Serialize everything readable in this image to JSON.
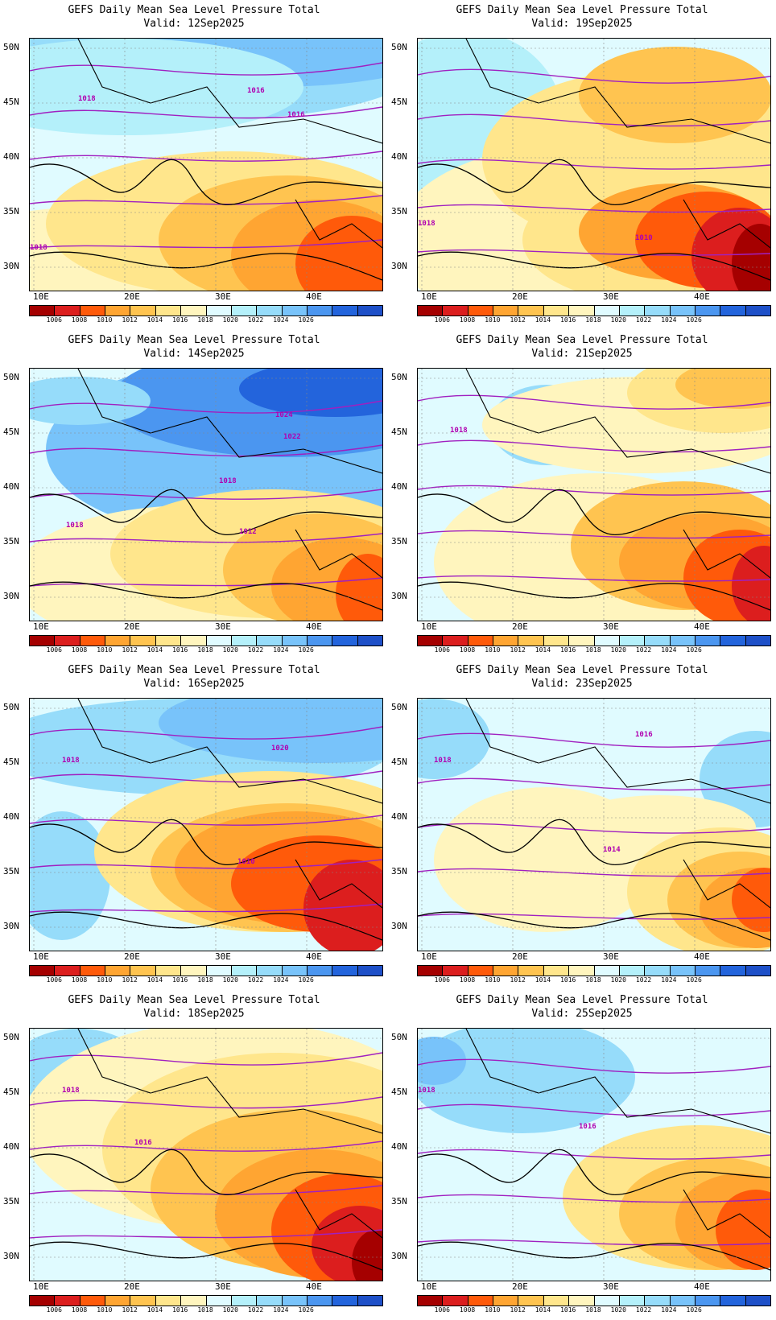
{
  "title_line1": "GEFS Daily Mean Sea Level Pressure Total",
  "lat_labels": [
    "50N",
    "45N",
    "40N",
    "35N",
    "30N"
  ],
  "lon_labels": [
    "10E",
    "20E",
    "30E",
    "40E"
  ],
  "colorbar": {
    "colors": [
      "#a50000",
      "#dc1e1e",
      "#ff5a0a",
      "#ffa532",
      "#ffc450",
      "#ffe68c",
      "#fff5be",
      "#e0fbff",
      "#b4f0fa",
      "#96dcfa",
      "#78c3fa",
      "#4b96f0",
      "#2364dc",
      "#1e50c8"
    ],
    "labels": [
      "1006",
      "1008",
      "1010",
      "1012",
      "1014",
      "1016",
      "1018",
      "1020",
      "1022",
      "1024",
      "1026"
    ]
  },
  "panels": [
    {
      "valid": "Valid: 12Sep2025",
      "isobar_labels": [
        "1018",
        "1016",
        "1016",
        "1018"
      ]
    },
    {
      "valid": "Valid: 19Sep2025",
      "isobar_labels": [
        "1018",
        "1010"
      ]
    },
    {
      "valid": "Valid: 14Sep2025",
      "isobar_labels": [
        "1024",
        "1022",
        "1018",
        "1018",
        "1012"
      ]
    },
    {
      "valid": "Valid: 21Sep2025",
      "isobar_labels": [
        "1018"
      ]
    },
    {
      "valid": "Valid: 16Sep2025",
      "isobar_labels": [
        "1020",
        "1018",
        "1010"
      ]
    },
    {
      "valid": "Valid: 23Sep2025",
      "isobar_labels": [
        "1016",
        "1018",
        "1014"
      ]
    },
    {
      "valid": "Valid: 18Sep2025",
      "isobar_labels": [
        "1018",
        "1016"
      ]
    },
    {
      "valid": "Valid: 25Sep2025",
      "isobar_labels": [
        "1018",
        "1016"
      ]
    }
  ]
}
